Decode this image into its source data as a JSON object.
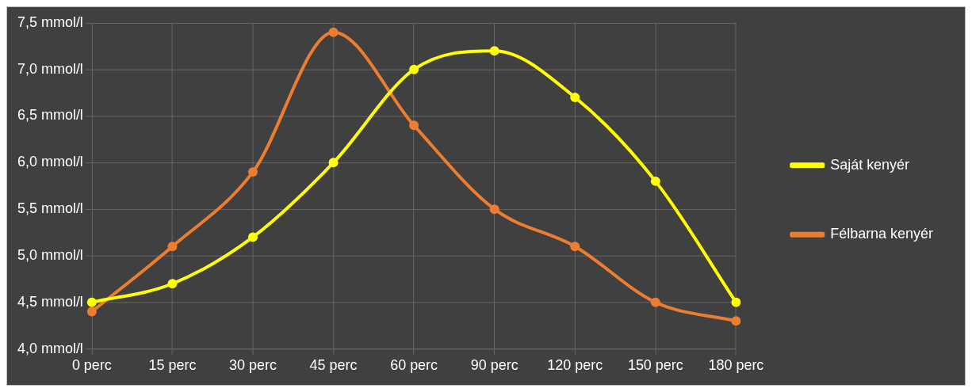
{
  "chart_data": {
    "type": "line",
    "categories": [
      "0 perc",
      "15 perc",
      "30 perc",
      "45 perc",
      "60 perc",
      "90 perc",
      "120 perc",
      "150 perc",
      "180 perc"
    ],
    "series": [
      {
        "name": "Saját kenyér",
        "color": "#ffff00",
        "values": [
          4.5,
          4.7,
          5.2,
          6.0,
          7.0,
          7.2,
          6.7,
          5.8,
          4.5
        ]
      },
      {
        "name": "Félbarna kenyér",
        "color": "#ed7d31",
        "values": [
          4.4,
          5.1,
          5.9,
          7.4,
          6.4,
          5.5,
          5.1,
          4.5,
          4.3
        ]
      }
    ],
    "ylim": [
      4.0,
      7.5
    ],
    "yticks": [
      {
        "value": 4.0,
        "label": "4,0 mmol/l"
      },
      {
        "value": 4.5,
        "label": "4,5 mmol/l"
      },
      {
        "value": 5.0,
        "label": "5,0 mmol/l"
      },
      {
        "value": 5.5,
        "label": "5,5 mmol/l"
      },
      {
        "value": 6.0,
        "label": "6,0 mmol/l"
      },
      {
        "value": 6.5,
        "label": "6,5 mmol/l"
      },
      {
        "value": 7.0,
        "label": "7,0 mmol/l"
      },
      {
        "value": 7.5,
        "label": "7,5 mmol/l"
      }
    ],
    "grid": true,
    "legend": "right",
    "marker": "circle",
    "line_style": "solid"
  }
}
